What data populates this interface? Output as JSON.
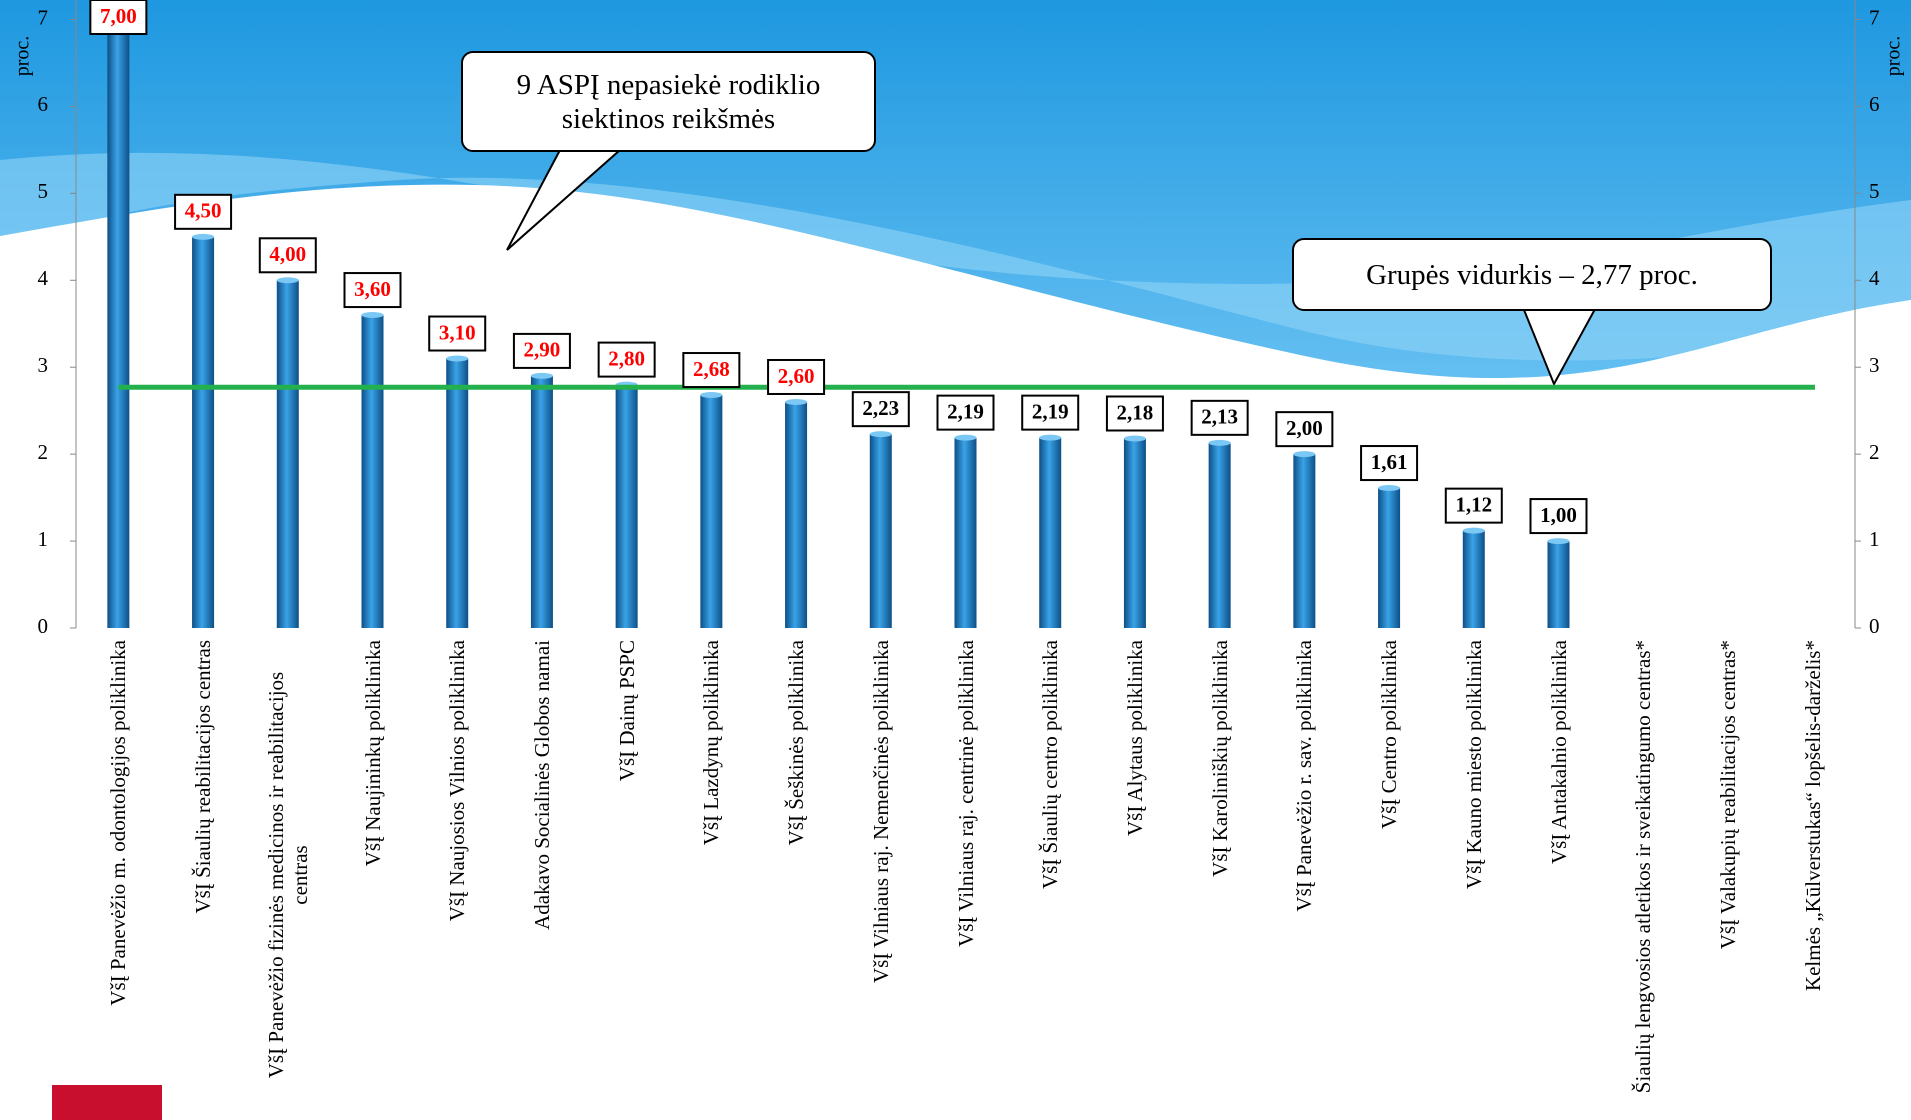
{
  "chart_data": {
    "type": "bar",
    "categories": [
      "VšĮ Panevėžio m. odontologijos poliklinika",
      "VšĮ Šiaulių reabilitacijos centras",
      "VšĮ Panevėžio fizinės medicinos ir reabilitacijos centras",
      "VšĮ Naujininkų poliklinika",
      "VšĮ Naujosios Vilnios poliklinika",
      "Adakavo Socialinės Globos namai",
      "VšĮ Dainų PSPC",
      "VšĮ Lazdynų poliklinika",
      "VšĮ Šeškinės poliklinika",
      "VšĮ Vilniaus raj. Nemenčinės poliklinika",
      "VšĮ Vilniaus raj. centrinė poliklinika",
      "VšĮ Šiaulių centro poliklinika",
      "VšĮ Alytaus poliklinika",
      "VšĮ Karoliniškių poliklinika",
      "VšĮ Panevėžio r. sav. poliklinika",
      "VšĮ Centro poliklinika",
      "VšĮ Kauno miesto poliklinika",
      "VšĮ Antakalnio poliklinika",
      "Šiaulių lengvosios atletikos ir sveikatingumo centras*",
      "VšĮ Valakupių reabilitacijos centras*",
      "Kelmės „Kūlverstukas“ lopšelis-darželis*"
    ],
    "values": [
      7.0,
      4.5,
      4.0,
      3.6,
      3.1,
      2.9,
      2.8,
      2.68,
      2.6,
      2.23,
      2.19,
      2.19,
      2.18,
      2.13,
      2.0,
      1.61,
      1.12,
      1.0,
      null,
      null,
      null
    ],
    "value_labels": [
      "7,00",
      "4,50",
      "4,00",
      "3,60",
      "3,10",
      "2,90",
      "2,80",
      "2,68",
      "2,60",
      "2,23",
      "2,19",
      "2,19",
      "2,18",
      "2,13",
      "2,00",
      "1,61",
      "1,12",
      "1,00",
      null,
      null,
      null
    ],
    "value_label_colors": [
      "#ff0000",
      "#ff0000",
      "#ff0000",
      "#ff0000",
      "#ff0000",
      "#ff0000",
      "#ff0000",
      "#ff0000",
      "#ff0000",
      "#000000",
      "#000000",
      "#000000",
      "#000000",
      "#000000",
      "#000000",
      "#000000",
      "#000000",
      "#000000",
      null,
      null,
      null
    ],
    "color": "#1f7fc4",
    "ylim": [
      0,
      7
    ],
    "yticks": [
      0,
      1,
      2,
      3,
      4,
      5,
      6,
      7
    ],
    "y2lim": [
      0,
      7
    ],
    "y2ticks": [
      0,
      1,
      2,
      3,
      4,
      5,
      6,
      7
    ],
    "y_label": "proc.",
    "y2_label": "proc.",
    "average": 2.77,
    "average_color": "#22b14c",
    "annotations": [
      "9 ASPĮ nepasiekė rodiklio siektinos reikšmės",
      "Grupės vidurkis – 2,77 proc."
    ]
  }
}
